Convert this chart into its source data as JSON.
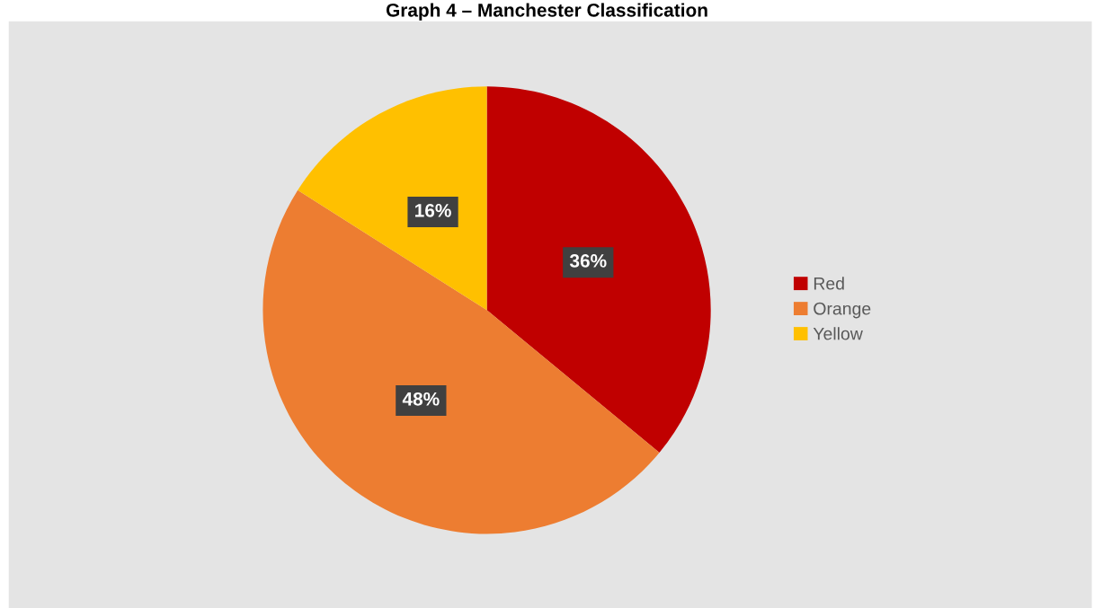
{
  "chart_data": {
    "type": "pie",
    "title": "Graph 4 – Manchester Classification",
    "categories": [
      "Red",
      "Orange",
      "Yellow"
    ],
    "values": [
      36,
      48,
      16
    ],
    "colors": [
      "#c00000",
      "#ed7d31",
      "#ffc000"
    ],
    "value_labels": [
      "36%",
      "48%",
      "16%"
    ],
    "legend": "right"
  }
}
